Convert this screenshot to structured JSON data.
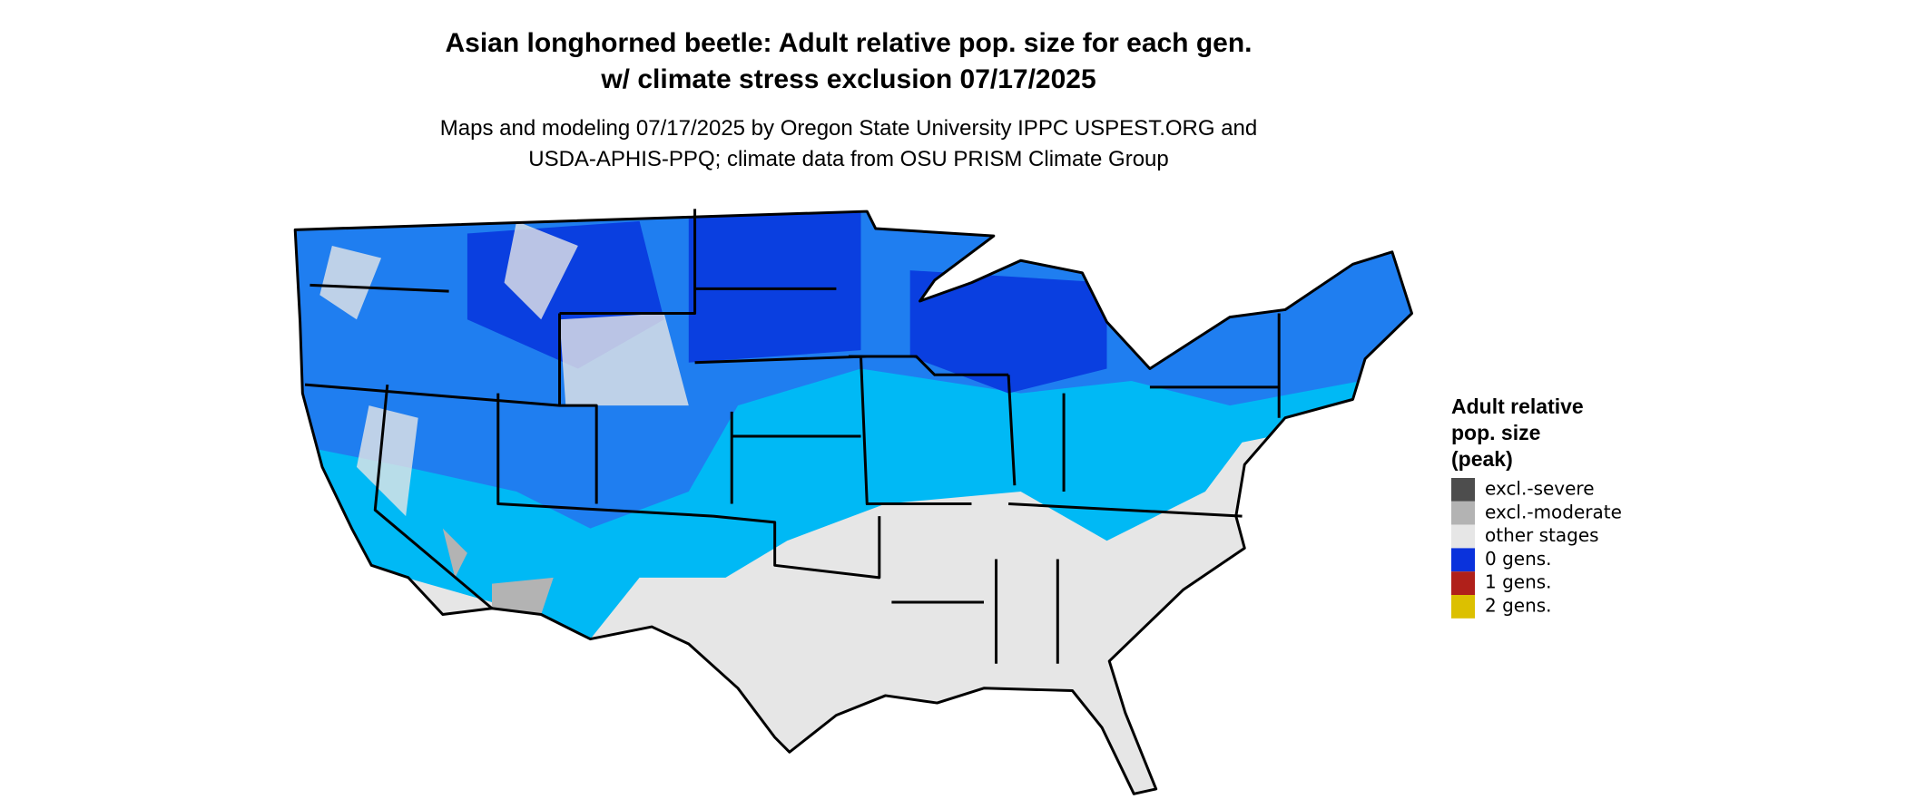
{
  "title": [
    "Asian longhorned beetle: Adult relative pop. size for each gen.",
    "w/ climate stress exclusion 07/17/2025"
  ],
  "subtitle": [
    "Maps and modeling 07/17/2025 by Oregon State University IPPC USPEST.ORG and",
    "USDA-APHIS-PPQ; climate data from OSU PRISM Climate Group"
  ],
  "legend": {
    "title": [
      "Adult relative",
      "pop. size",
      "(peak)"
    ],
    "items": [
      {
        "label": "excl.-severe",
        "color": "#4d4d4d"
      },
      {
        "label": "excl.-moderate",
        "color": "#b3b3b3"
      },
      {
        "label": "other stages",
        "color": "#e6e6e6"
      },
      {
        "label": "0 gens.",
        "color": "#0a32dc"
      },
      {
        "label": "1 gens.",
        "color": "#b0201a"
      },
      {
        "label": "2 gens.",
        "color": "#dcc000"
      }
    ]
  }
}
